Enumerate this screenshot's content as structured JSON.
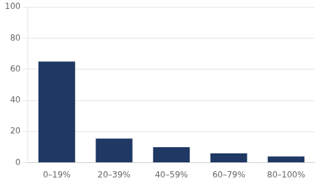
{
  "chart_data": {
    "type": "bar",
    "categories": [
      "0–19%",
      "20–39%",
      "40–59%",
      "60–79%",
      "80–100%"
    ],
    "values": [
      65,
      15.5,
      10,
      6,
      4
    ],
    "color": "#1f3864",
    "ylim": [
      0,
      100
    ],
    "yticks": [
      0,
      20,
      40,
      60,
      80,
      100
    ],
    "grid": true
  }
}
